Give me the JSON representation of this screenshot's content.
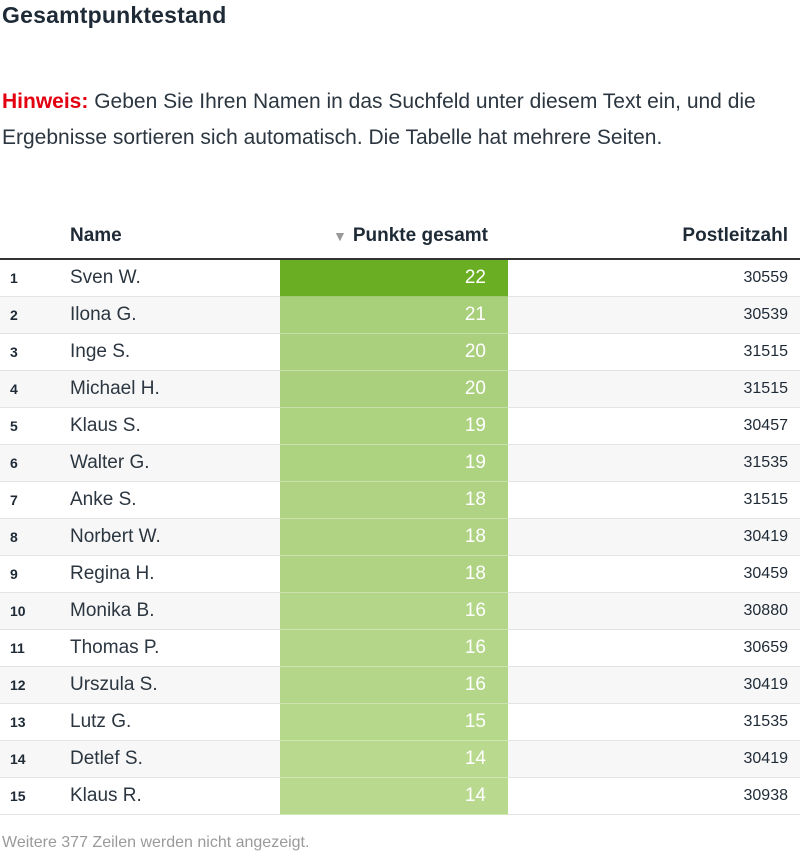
{
  "title": "Gesamtpunktestand",
  "notice": {
    "label": "Hinweis:",
    "text": "Geben Sie Ihren Namen in das Suchfeld unter diesem Text ein, und die Ergebnisse sortieren sich automatisch. Die Tabelle hat mehrere Seiten."
  },
  "table": {
    "columns": {
      "rank": "",
      "name": "Name",
      "points": "Punkte gesamt",
      "zip": "Postleitzahl"
    },
    "sort_icon": "sort-descending-icon",
    "heat_colors": {
      "high": "#6aaf23",
      "low": "#b8d98e"
    },
    "rows": [
      {
        "rank": "1",
        "name": "Sven W.",
        "points": 22,
        "zip": "30559"
      },
      {
        "rank": "2",
        "name": "Ilona G.",
        "points": 21,
        "zip": "30539"
      },
      {
        "rank": "3",
        "name": "Inge S.",
        "points": 20,
        "zip": "31515"
      },
      {
        "rank": "4",
        "name": "Michael H.",
        "points": 20,
        "zip": "31515"
      },
      {
        "rank": "5",
        "name": "Klaus S.",
        "points": 19,
        "zip": "30457"
      },
      {
        "rank": "6",
        "name": "Walter G.",
        "points": 19,
        "zip": "31535"
      },
      {
        "rank": "7",
        "name": "Anke S.",
        "points": 18,
        "zip": "31515"
      },
      {
        "rank": "8",
        "name": "Norbert W.",
        "points": 18,
        "zip": "30419"
      },
      {
        "rank": "9",
        "name": "Regina H.",
        "points": 18,
        "zip": "30459"
      },
      {
        "rank": "10",
        "name": "Monika B.",
        "points": 16,
        "zip": "30880"
      },
      {
        "rank": "11",
        "name": "Thomas P.",
        "points": 16,
        "zip": "30659"
      },
      {
        "rank": "12",
        "name": "Urszula S.",
        "points": 16,
        "zip": "30419"
      },
      {
        "rank": "13",
        "name": "Lutz G.",
        "points": 15,
        "zip": "31535"
      },
      {
        "rank": "14",
        "name": "Detlef S.",
        "points": 14,
        "zip": "30419"
      },
      {
        "rank": "15",
        "name": "Klaus R.",
        "points": 14,
        "zip": "30938"
      }
    ]
  },
  "footer": "Weitere 377 Zeilen werden nicht angezeigt."
}
